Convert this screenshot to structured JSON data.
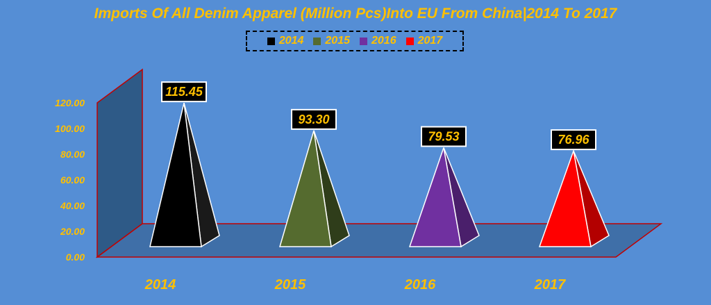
{
  "chart_data": {
    "type": "bar",
    "title": "Imports Of All Denim Apparel (Million Pcs)Into EU From China|2014 To 2017",
    "categories": [
      "2014",
      "2015",
      "2016",
      "2017"
    ],
    "values": [
      115.45,
      93.3,
      79.53,
      76.96
    ],
    "value_labels": [
      "115.45",
      "93.30",
      "79.53",
      "76.96"
    ],
    "series": [
      {
        "name": "2014",
        "color": "#000000",
        "shade": "#1a1a1a"
      },
      {
        "name": "2015",
        "color": "#556b2f",
        "shade": "#2f3d1a"
      },
      {
        "name": "2016",
        "color": "#7030a0",
        "shade": "#4a1f6b"
      },
      {
        "name": "2017",
        "color": "#ff0000",
        "shade": "#b30000"
      }
    ],
    "yticks": [
      "0.00",
      "20.00",
      "40.00",
      "60.00",
      "80.00",
      "100.00",
      "120.00"
    ],
    "ylim": [
      0,
      120
    ],
    "legend_position": "top",
    "shape": "pyramid-3d",
    "colors": {
      "background": "#558ed5",
      "text": "#ffc000",
      "wall": "#2e5a87",
      "floor": "#3f6fa8",
      "axis_line": "#c00000"
    }
  }
}
